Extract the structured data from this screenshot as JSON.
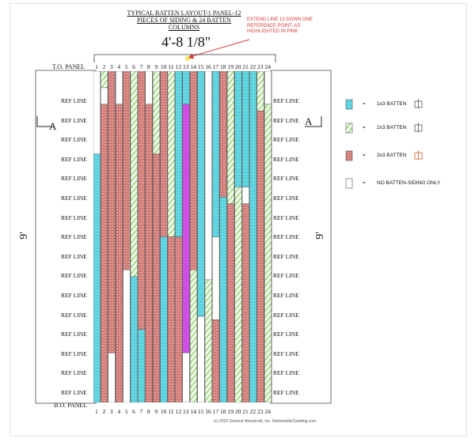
{
  "title": {
    "line1": "TYPICAL BATTEN LAYOUT-1 PANEL-12",
    "line2": "PIECES OF SIDING & 24 BATTEN",
    "line3": "COLUMNS"
  },
  "dimension": "4'-8 1/8\"",
  "note": "EXTEND LINE 13 DOWN ONE REFERENCE POINT, AS HIGHLIGHTED IN PINK",
  "labels": {
    "top_panel": "T.O. PANEL",
    "bottom_panel": "B.O. PANEL",
    "height_left": "9'",
    "height_right": "9'",
    "section_left": "A",
    "section_right": "A"
  },
  "ref_line_label": "REF LINE",
  "ref_line_count": 16,
  "columns": [
    "1",
    "2",
    "3",
    "4",
    "5",
    "6",
    "7",
    "8",
    "9",
    "10",
    "11",
    "12",
    "13",
    "14",
    "15",
    "16",
    "17",
    "18",
    "19",
    "20",
    "21",
    "22",
    "23",
    "24"
  ],
  "legend": [
    {
      "icon": "1x3-batten-swatch",
      "color": "#57d1de",
      "text": "1x3 BATTEN",
      "eq": "="
    },
    {
      "icon": "2x3-batten-swatch",
      "color": "#a7de8c",
      "text": "2x3 BATTEN",
      "eq": "="
    },
    {
      "icon": "3x3-batten-swatch",
      "color": "#c9605e",
      "text": "3x3 BATTEN",
      "eq": "="
    },
    {
      "icon": "siding-only-swatch",
      "color": "#ffffff",
      "text": "NO BATTEN-SIDING ONLY",
      "eq": "="
    }
  ],
  "highlight_color": "#d04ee6",
  "footer": "(c) 2023 General Woodcraft, Inc. NationwideCladding.com",
  "chart_data": {
    "type": "table",
    "rows": 16,
    "columns": 24,
    "column_layouts": [
      [
        {
          "t": "W",
          "f": 0.0,
          "to": 0.25
        },
        {
          "t": "C",
          "f": 0.25,
          "to": 1.0
        }
      ],
      [
        {
          "t": "G",
          "f": 0.0,
          "to": 0.05
        },
        {
          "t": "W",
          "f": 0.05,
          "to": 0.1
        },
        {
          "t": "R",
          "f": 0.1,
          "to": 1.0
        }
      ],
      [
        {
          "t": "R",
          "f": 0.0,
          "to": 0.85
        },
        {
          "t": "W",
          "f": 0.85,
          "to": 1.0
        }
      ],
      [
        {
          "t": "W",
          "f": 0.0,
          "to": 0.1
        },
        {
          "t": "R",
          "f": 0.1,
          "to": 1.0
        }
      ],
      [
        {
          "t": "R",
          "f": 0.0,
          "to": 0.6
        },
        {
          "t": "W",
          "f": 0.6,
          "to": 1.0
        }
      ],
      [
        {
          "t": "G",
          "f": 0.0,
          "to": 0.62
        },
        {
          "t": "C",
          "f": 0.62,
          "to": 1.0
        }
      ],
      [
        {
          "t": "R",
          "f": 0.0,
          "to": 0.78
        },
        {
          "t": "C",
          "f": 0.78,
          "to": 1.0
        }
      ],
      [
        {
          "t": "W",
          "f": 0.0,
          "to": 0.1
        },
        {
          "t": "R",
          "f": 0.1,
          "to": 1.0
        }
      ],
      [
        {
          "t": "G",
          "f": 0.0,
          "to": 0.25
        },
        {
          "t": "R",
          "f": 0.25,
          "to": 1.0
        }
      ],
      [
        {
          "t": "R",
          "f": 0.0,
          "to": 0.5
        },
        {
          "t": "C",
          "f": 0.5,
          "to": 1.0
        }
      ],
      [
        {
          "t": "G",
          "f": 0.0,
          "to": 0.5
        },
        {
          "t": "R",
          "f": 0.5,
          "to": 1.0
        }
      ],
      [
        {
          "t": "C",
          "f": 0.0,
          "to": 0.5
        },
        {
          "t": "R",
          "f": 0.5,
          "to": 1.0
        }
      ],
      [
        {
          "t": "C",
          "f": 0.0,
          "to": 0.1
        },
        {
          "t": "P",
          "f": 0.1,
          "to": 0.85
        },
        {
          "t": "W",
          "f": 0.85,
          "to": 1.0
        }
      ],
      [
        {
          "t": "R",
          "f": 0.0,
          "to": 0.6
        },
        {
          "t": "G",
          "f": 0.6,
          "to": 1.0
        }
      ],
      [
        {
          "t": "C",
          "f": 0.0,
          "to": 0.74
        },
        {
          "t": "W",
          "f": 0.74,
          "to": 1.0
        }
      ],
      [
        {
          "t": "W",
          "f": 0.0,
          "to": 0.63
        },
        {
          "t": "G",
          "f": 0.63,
          "to": 1.0
        }
      ],
      [
        {
          "t": "C",
          "f": 0.0,
          "to": 0.5
        },
        {
          "t": "W",
          "f": 0.5,
          "to": 0.75
        },
        {
          "t": "R",
          "f": 0.75,
          "to": 1.0
        }
      ],
      [
        {
          "t": "R",
          "f": 0.0,
          "to": 0.38
        },
        {
          "t": "C",
          "f": 0.38,
          "to": 1.0
        }
      ],
      [
        {
          "t": "G",
          "f": 0.0,
          "to": 0.4
        },
        {
          "t": "R",
          "f": 0.4,
          "to": 1.0
        }
      ],
      [
        {
          "t": "C",
          "f": 0.0,
          "to": 0.35
        },
        {
          "t": "G",
          "f": 0.35,
          "to": 1.0
        }
      ],
      [
        {
          "t": "C",
          "f": 0.0,
          "to": 0.35
        },
        {
          "t": "W",
          "f": 0.35,
          "to": 0.4
        },
        {
          "t": "R",
          "f": 0.4,
          "to": 1.0
        }
      ],
      [
        {
          "t": "C",
          "f": 0.0,
          "to": 1.0
        }
      ],
      [
        {
          "t": "G",
          "f": 0.0,
          "to": 0.12
        },
        {
          "t": "R",
          "f": 0.12,
          "to": 1.0
        }
      ],
      [
        {
          "t": "W",
          "f": 0.0,
          "to": 0.1
        },
        {
          "t": "G",
          "f": 0.1,
          "to": 1.0
        }
      ]
    ]
  }
}
